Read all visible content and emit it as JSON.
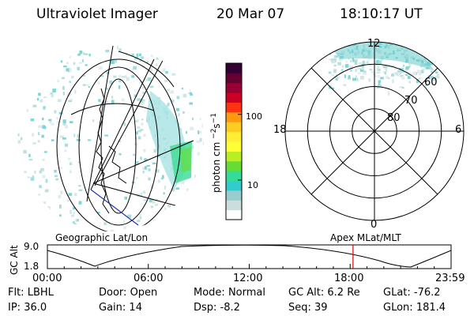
{
  "header": {
    "instrument": "Ultraviolet Imager",
    "date": "20 Mar 07",
    "time": "18:10:17 UT"
  },
  "colorbar": {
    "unit_label": "photon cm",
    "unit_exp1": "−2",
    "unit_mid": "s",
    "unit_exp2": "−1",
    "ticks": [
      {
        "value": 100,
        "label": "100"
      },
      {
        "value": 10,
        "label": "10"
      }
    ],
    "scale": "log",
    "range": [
      2.5,
      600
    ],
    "colors": [
      "#ffffff",
      "#ccdddd",
      "#99cccc",
      "#33cccc",
      "#33dd99",
      "#66dd33",
      "#bbee22",
      "#ffff33",
      "#ffee33",
      "#ffcc22",
      "#ff9911",
      "#ff3311",
      "#cc0022",
      "#990033",
      "#660033",
      "#330033"
    ]
  },
  "polar_plot": {
    "labels": {
      "top": "12",
      "left": "18",
      "right": "6",
      "bottom": "0"
    },
    "rings": [
      {
        "label": "60",
        "mlat": 60
      },
      {
        "label": "70",
        "mlat": 70
      },
      {
        "label": "80",
        "mlat": 80
      }
    ]
  },
  "timeline": {
    "left_title": "Geographic Lat/Lon",
    "right_title": "Apex MLat/MLT",
    "axis_label": "GC Alt",
    "y_ticks": [
      "9.0",
      "1.8"
    ],
    "x_ticks": [
      "00:00",
      "06:00",
      "12:00",
      "18:00",
      "23:59"
    ],
    "current_time_hours": 18.17,
    "marker_color": "#dd0000"
  },
  "info": {
    "row1": [
      {
        "label": "Flt:",
        "value": "LBHL"
      },
      {
        "label": "Door:",
        "value": "Open"
      },
      {
        "label": "Mode:",
        "value": "Normal"
      },
      {
        "label": "GC Alt:",
        "value": "6.2 Re"
      },
      {
        "label": "GLat:",
        "value": "-76.2"
      }
    ],
    "row2": [
      {
        "label": "IP:",
        "value": "36.0"
      },
      {
        "label": "Gain:",
        "value": "14"
      },
      {
        "label": "Dsp:",
        "value": "-8.2"
      },
      {
        "label": "Seq:",
        "value": "39"
      },
      {
        "label": "GLon:",
        "value": "181.4"
      }
    ]
  }
}
